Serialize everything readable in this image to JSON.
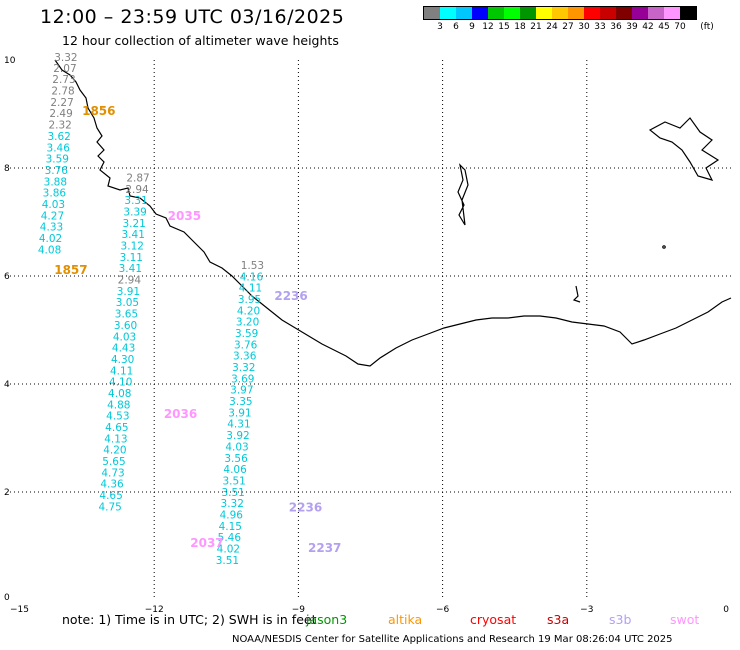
{
  "title": "12:00 – 23:59 UTC 03/16/2025",
  "subtitle": "12 hour collection of altimeter wave heights",
  "legend": {
    "unit": "(ft)",
    "labels": [
      "3",
      "6",
      "9",
      "12",
      "15",
      "18",
      "21",
      "24",
      "27",
      "30",
      "33",
      "36",
      "39",
      "42",
      "45",
      "70"
    ],
    "colors": [
      "#808080",
      "#00ffff",
      "#00c8ff",
      "#0000ff",
      "#00c800",
      "#00ff00",
      "#009600",
      "#ffff00",
      "#ffc800",
      "#ff9600",
      "#ff0000",
      "#c80000",
      "#800000",
      "#960096",
      "#c864c8",
      "#ff96ff",
      "#000000"
    ]
  },
  "axes": {
    "x_ticks": [
      "−15",
      "−12",
      "−9",
      "−6",
      "−3",
      "0"
    ],
    "y_ticks": [
      "0",
      "2",
      "4",
      "6",
      "8",
      "10"
    ],
    "xlim": [
      -15,
      0
    ],
    "ylim": [
      0,
      10
    ]
  },
  "note": "note:  1) Time is in UTC;  2) SWH is in feet",
  "satellites": [
    {
      "name": "jason3",
      "color": "#009600"
    },
    {
      "name": "altika",
      "color": "#ff9600"
    },
    {
      "name": "cryosat",
      "color": "#ff0000"
    },
    {
      "name": "s3a",
      "color": "#c80000"
    },
    {
      "name": "s3b",
      "color": "#b4a0f0"
    },
    {
      "name": "swot",
      "color": "#ff96ff"
    }
  ],
  "credit": "NOAA/NESDIS Center for Satellite Applications and Research    19 Mar 08:26:04 UTC 2025",
  "tracks": [
    {
      "id": "track-1",
      "points": [
        {
          "lon": -14.08,
          "lat": 9.98,
          "v": "3.32",
          "c": "#808080"
        },
        {
          "lon": -14.1,
          "lat": 9.78,
          "v": "2.07",
          "c": "#808080"
        },
        {
          "lon": -14.12,
          "lat": 9.57,
          "v": "2.73",
          "c": "#808080"
        },
        {
          "lon": -14.14,
          "lat": 9.36,
          "v": "2.78",
          "c": "#808080"
        },
        {
          "lon": -14.16,
          "lat": 9.15,
          "v": "2.27",
          "c": "#808080"
        },
        {
          "lon": -14.18,
          "lat": 8.94,
          "v": "2.49",
          "c": "#808080"
        },
        {
          "lon": -14.2,
          "lat": 8.73,
          "v": "2.32",
          "c": "#808080"
        },
        {
          "lon": -14.22,
          "lat": 8.52,
          "v": "3.62",
          "c": "#00c8d8"
        },
        {
          "lon": -14.24,
          "lat": 8.31,
          "v": "3.46",
          "c": "#00c8d8"
        },
        {
          "lon": -14.26,
          "lat": 8.1,
          "v": "3.59",
          "c": "#00c8d8"
        },
        {
          "lon": -14.28,
          "lat": 7.89,
          "v": "3.76",
          "c": "#00c8d8"
        },
        {
          "lon": -14.3,
          "lat": 7.68,
          "v": "3.88",
          "c": "#00c8d8"
        },
        {
          "lon": -14.32,
          "lat": 7.47,
          "v": "3.86",
          "c": "#00c8d8"
        },
        {
          "lon": -14.34,
          "lat": 7.26,
          "v": "4.03",
          "c": "#00c8d8"
        },
        {
          "lon": -14.36,
          "lat": 7.05,
          "v": "4.27",
          "c": "#00c8d8"
        },
        {
          "lon": -14.38,
          "lat": 6.84,
          "v": "4.33",
          "c": "#00c8d8"
        },
        {
          "lon": -14.4,
          "lat": 6.63,
          "v": "4.02",
          "c": "#00c8d8"
        },
        {
          "lon": -14.42,
          "lat": 6.42,
          "v": "4.08",
          "c": "#00c8d8"
        }
      ]
    },
    {
      "id": "track-2",
      "points": [
        {
          "lon": -12.58,
          "lat": 7.75,
          "v": "2.87",
          "c": "#808080"
        },
        {
          "lon": -12.6,
          "lat": 7.54,
          "v": "2.94",
          "c": "#808080"
        },
        {
          "lon": -12.62,
          "lat": 7.33,
          "v": "3.31",
          "c": "#00c8d8"
        },
        {
          "lon": -12.64,
          "lat": 7.12,
          "v": "3.39",
          "c": "#00c8d8"
        },
        {
          "lon": -12.66,
          "lat": 6.91,
          "v": "3.21",
          "c": "#00c8d8"
        },
        {
          "lon": -12.68,
          "lat": 6.7,
          "v": "3.41",
          "c": "#00c8d8"
        },
        {
          "lon": -12.7,
          "lat": 6.49,
          "v": "3.12",
          "c": "#00c8d8"
        },
        {
          "lon": -12.72,
          "lat": 6.28,
          "v": "3.11",
          "c": "#00c8d8"
        },
        {
          "lon": -12.74,
          "lat": 6.07,
          "v": "3.41",
          "c": "#00c8d8"
        },
        {
          "lon": -12.76,
          "lat": 5.86,
          "v": "2.94",
          "c": "#808080"
        },
        {
          "lon": -12.78,
          "lat": 5.65,
          "v": "3.91",
          "c": "#00c8d8"
        },
        {
          "lon": -12.8,
          "lat": 5.44,
          "v": "3.05",
          "c": "#00c8d8"
        },
        {
          "lon": -12.82,
          "lat": 5.23,
          "v": "3.65",
          "c": "#00c8d8"
        },
        {
          "lon": -12.84,
          "lat": 5.02,
          "v": "3.60",
          "c": "#00c8d8"
        },
        {
          "lon": -12.86,
          "lat": 4.81,
          "v": "4.03",
          "c": "#00c8d8"
        },
        {
          "lon": -12.88,
          "lat": 4.6,
          "v": "4.43",
          "c": "#00c8d8"
        },
        {
          "lon": -12.9,
          "lat": 4.39,
          "v": "4.30",
          "c": "#00c8d8"
        },
        {
          "lon": -12.92,
          "lat": 4.18,
          "v": "4.11",
          "c": "#00c8d8"
        },
        {
          "lon": -12.94,
          "lat": 3.97,
          "v": "4.10",
          "c": "#00c8d8"
        },
        {
          "lon": -12.96,
          "lat": 3.76,
          "v": "4.08",
          "c": "#00c8d8"
        },
        {
          "lon": -12.98,
          "lat": 3.55,
          "v": "4.88",
          "c": "#00c8d8"
        },
        {
          "lon": -13.0,
          "lat": 3.34,
          "v": "4.53",
          "c": "#00c8d8"
        },
        {
          "lon": -13.02,
          "lat": 3.13,
          "v": "4.65",
          "c": "#00c8d8"
        },
        {
          "lon": -13.04,
          "lat": 2.92,
          "v": "4.13",
          "c": "#00c8d8"
        },
        {
          "lon": -13.06,
          "lat": 2.71,
          "v": "4.20",
          "c": "#00c8d8"
        },
        {
          "lon": -13.08,
          "lat": 2.5,
          "v": "5.65",
          "c": "#00c8d8"
        },
        {
          "lon": -13.1,
          "lat": 2.29,
          "v": "4.73",
          "c": "#00c8d8"
        },
        {
          "lon": -13.12,
          "lat": 2.08,
          "v": "4.36",
          "c": "#00c8d8"
        },
        {
          "lon": -13.14,
          "lat": 1.87,
          "v": "4.65",
          "c": "#00c8d8"
        },
        {
          "lon": -13.16,
          "lat": 1.66,
          "v": "4.75",
          "c": "#00c8d8"
        }
      ]
    },
    {
      "id": "track-3",
      "points": [
        {
          "lon": -10.2,
          "lat": 6.13,
          "v": "1.53",
          "c": "#808080"
        },
        {
          "lon": -10.22,
          "lat": 5.92,
          "v": "4.16",
          "c": "#00c8d8"
        },
        {
          "lon": -10.24,
          "lat": 5.71,
          "v": "4.11",
          "c": "#00c8d8"
        },
        {
          "lon": -10.26,
          "lat": 5.5,
          "v": "3.95",
          "c": "#00c8d8"
        },
        {
          "lon": -10.28,
          "lat": 5.29,
          "v": "4.20",
          "c": "#00c8d8"
        },
        {
          "lon": -10.3,
          "lat": 5.08,
          "v": "3.20",
          "c": "#00c8d8"
        },
        {
          "lon": -10.32,
          "lat": 4.87,
          "v": "3.59",
          "c": "#00c8d8"
        },
        {
          "lon": -10.34,
          "lat": 4.66,
          "v": "3.76",
          "c": "#00c8d8"
        },
        {
          "lon": -10.36,
          "lat": 4.45,
          "v": "3.36",
          "c": "#00c8d8"
        },
        {
          "lon": -10.38,
          "lat": 4.24,
          "v": "3.32",
          "c": "#00c8d8"
        },
        {
          "lon": -10.4,
          "lat": 4.03,
          "v": "3.69",
          "c": "#00c8d8"
        },
        {
          "lon": -10.42,
          "lat": 3.82,
          "v": "3.97",
          "c": "#00c8d8"
        },
        {
          "lon": -10.44,
          "lat": 3.61,
          "v": "3.35",
          "c": "#00c8d8"
        },
        {
          "lon": -10.46,
          "lat": 3.4,
          "v": "3.91",
          "c": "#00c8d8"
        },
        {
          "lon": -10.48,
          "lat": 3.19,
          "v": "4.31",
          "c": "#00c8d8"
        },
        {
          "lon": -10.5,
          "lat": 2.98,
          "v": "3.92",
          "c": "#00c8d8"
        },
        {
          "lon": -10.52,
          "lat": 2.77,
          "v": "4.03",
          "c": "#00c8d8"
        },
        {
          "lon": -10.54,
          "lat": 2.56,
          "v": "3.56",
          "c": "#00c8d8"
        },
        {
          "lon": -10.56,
          "lat": 2.35,
          "v": "4.06",
          "c": "#00c8d8"
        },
        {
          "lon": -10.58,
          "lat": 2.14,
          "v": "3.51",
          "c": "#00c8d8"
        },
        {
          "lon": -10.6,
          "lat": 1.93,
          "v": "3.51",
          "c": "#00c8d8"
        },
        {
          "lon": -10.62,
          "lat": 1.72,
          "v": "3.32",
          "c": "#00c8d8"
        },
        {
          "lon": -10.64,
          "lat": 1.51,
          "v": "4.96",
          "c": "#00c8d8"
        },
        {
          "lon": -10.66,
          "lat": 1.3,
          "v": "4.15",
          "c": "#00c8d8"
        },
        {
          "lon": -10.68,
          "lat": 1.09,
          "v": "5.46",
          "c": "#00c8d8"
        },
        {
          "lon": -10.7,
          "lat": 0.88,
          "v": "4.02",
          "c": "#00c8d8"
        },
        {
          "lon": -10.72,
          "lat": 0.67,
          "v": "3.51",
          "c": "#00c8d8"
        }
      ]
    }
  ],
  "times": [
    {
      "lon": -13.5,
      "lat": 8.98,
      "t": "1856",
      "c": "#e09000"
    },
    {
      "lon": -14.08,
      "lat": 6.04,
      "t": "1857",
      "c": "#e09000"
    },
    {
      "lon": -11.72,
      "lat": 7.04,
      "t": "2035",
      "c": "#ff96ff"
    },
    {
      "lon": -11.8,
      "lat": 3.37,
      "t": "2036",
      "c": "#ff96ff"
    },
    {
      "lon": -11.25,
      "lat": 0.98,
      "t": "2037",
      "c": "#ff96ff"
    },
    {
      "lon": -9.5,
      "lat": 5.56,
      "t": "2236",
      "c": "#b4a0f0"
    },
    {
      "lon": -9.2,
      "lat": 1.64,
      "t": "2236",
      "c": "#b4a0f0"
    },
    {
      "lon": -8.8,
      "lat": 0.89,
      "t": "2237",
      "c": "#b4a0f0"
    }
  ]
}
